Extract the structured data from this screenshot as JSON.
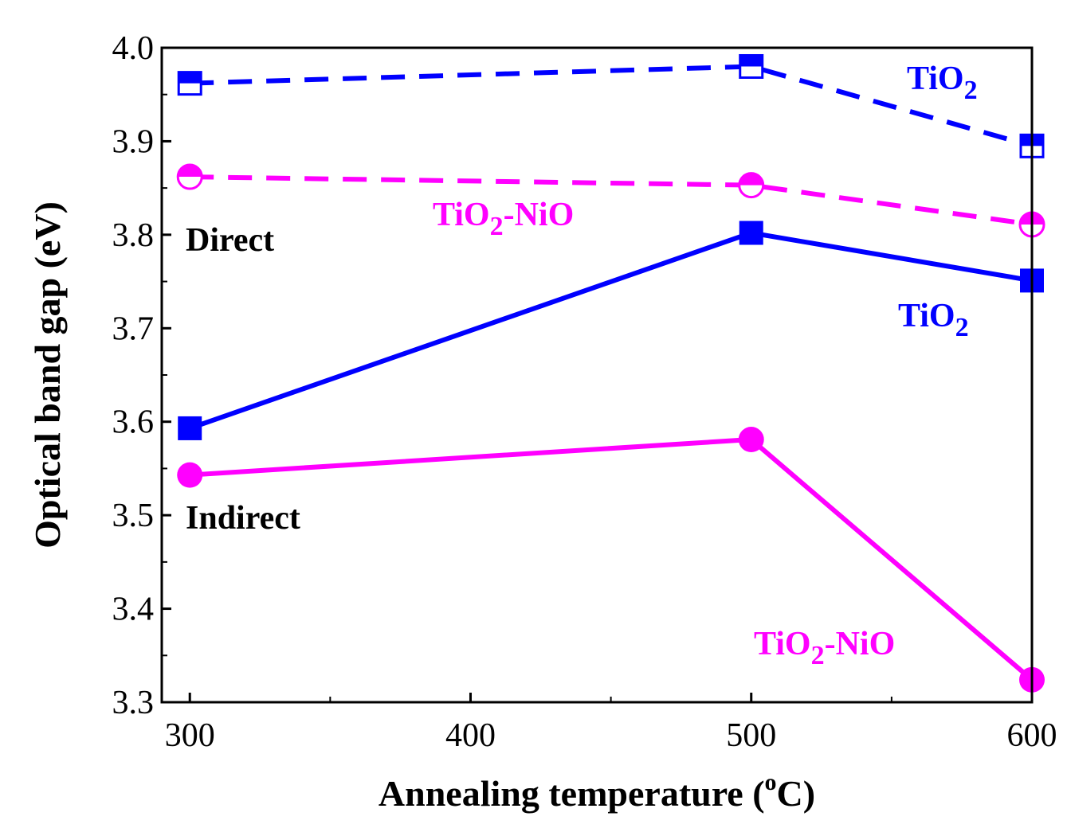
{
  "chart_data": {
    "type": "line",
    "title": "",
    "xlabel": "Annealing temperature (",
    "xlabel_unit_sup": "o",
    "xlabel_unit": "C)",
    "ylabel": "Optical band gap (eV)",
    "xlim": [
      290,
      600
    ],
    "ylim": [
      3.3,
      4.0
    ],
    "xticks": [
      300,
      400,
      500,
      600
    ],
    "xtick_labels": [
      "300",
      "400",
      "500",
      "600"
    ],
    "yticks": [
      3.3,
      3.4,
      3.5,
      3.6,
      3.7,
      3.8,
      3.9,
      4.0
    ],
    "ytick_labels": [
      "3.3",
      "3.4",
      "3.5",
      "3.6",
      "3.7",
      "3.8",
      "3.9",
      "4.0"
    ],
    "x": [
      300,
      500,
      600
    ],
    "series": [
      {
        "name": "TiO2 direct",
        "values": [
          3.962,
          3.98,
          3.895
        ],
        "color": "#0000ff",
        "dashed": true,
        "marker": "square-half"
      },
      {
        "name": "TiO2-NiO direct",
        "values": [
          3.862,
          3.853,
          3.811
        ],
        "color": "#ff00ff",
        "dashed": true,
        "marker": "circle-half"
      },
      {
        "name": "TiO2 indirect",
        "values": [
          3.593,
          3.802,
          3.751
        ],
        "color": "#0000ff",
        "dashed": false,
        "marker": "square"
      },
      {
        "name": "TiO2-NiO indirect",
        "values": [
          3.543,
          3.581,
          3.324
        ],
        "color": "#ff00ff",
        "dashed": false,
        "marker": "circle"
      }
    ],
    "annotations": {
      "direct": "Direct",
      "indirect": "Indirect",
      "tio2_top_main": "TiO",
      "tio2_top_sub": "2",
      "tio2nio_mid_main": "TiO",
      "tio2nio_mid_sub": "2",
      "tio2nio_mid_rest": "-NiO",
      "tio2_mid_main": "TiO",
      "tio2_mid_sub": "2",
      "tio2nio_low_main": "TiO",
      "tio2nio_low_sub": "2",
      "tio2nio_low_rest": "-NiO"
    }
  }
}
